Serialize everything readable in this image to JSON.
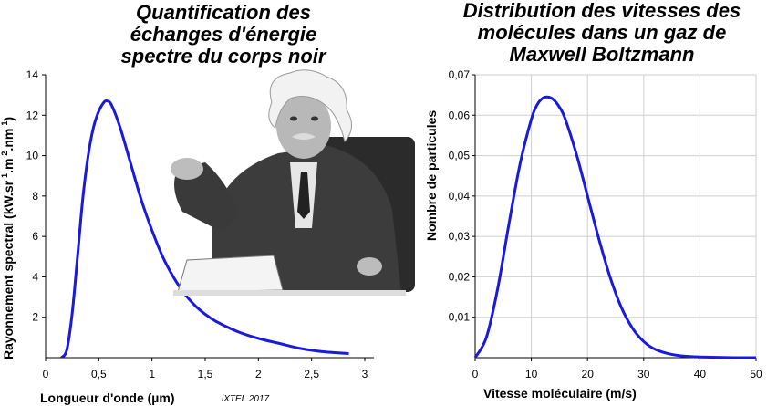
{
  "chart_data": [
    {
      "type": "line",
      "title_lines": [
        "Quantification des",
        "échanges d'énergie",
        "spectre du corps noir"
      ],
      "xlabel": "Longueur d'onde (µm)",
      "ylabel_parts": [
        "Rayonnement spectral (kW.sr",
        "-1",
        ".m",
        "-2",
        ".nm",
        "-1",
        ")"
      ],
      "xlim": [
        0,
        3
      ],
      "ylim": [
        0,
        14
      ],
      "xticks": [
        "0",
        "0,5",
        "1",
        "1,5",
        "2",
        "2,5",
        "3"
      ],
      "xtick_values": [
        0,
        0.5,
        1,
        1.5,
        2,
        2.5,
        3
      ],
      "yticks": [
        "2",
        "4",
        "6",
        "8",
        "10",
        "12",
        "14"
      ],
      "ytick_values": [
        2,
        4,
        6,
        8,
        10,
        12,
        14
      ],
      "grid": false,
      "line_color": "#1a1adc",
      "series": [
        {
          "x": [
            0.15,
            0.2,
            0.25,
            0.3,
            0.35,
            0.4,
            0.45,
            0.5,
            0.55,
            0.58,
            0.62,
            0.7,
            0.8,
            0.9,
            1.0,
            1.1,
            1.2,
            1.3,
            1.4,
            1.5,
            1.6,
            1.8,
            2.0,
            2.2,
            2.4,
            2.6,
            2.85
          ],
          "y": [
            0,
            0.4,
            2.2,
            5.0,
            7.9,
            10.0,
            11.4,
            12.2,
            12.65,
            12.7,
            12.5,
            11.4,
            9.6,
            7.8,
            6.3,
            5.0,
            4.0,
            3.2,
            2.6,
            2.15,
            1.8,
            1.3,
            0.95,
            0.7,
            0.45,
            0.3,
            0.2
          ]
        }
      ],
      "credit": "iXTEL 2017"
    },
    {
      "type": "line",
      "title_lines": [
        "Distribution des vitesses des",
        "molécules dans un gaz de",
        "Maxwell Boltzmann"
      ],
      "xlabel": "Vitesse moléculaire (m/s)",
      "ylabel": "Nombre de particules",
      "xlim": [
        0,
        50
      ],
      "ylim": [
        0,
        0.07
      ],
      "xticks": [
        "0",
        "10",
        "20",
        "30",
        "40",
        "50"
      ],
      "xtick_values": [
        0,
        10,
        20,
        30,
        40,
        50
      ],
      "yticks": [
        "0,01",
        "0,02",
        "0,03",
        "0,04",
        "0,05",
        "0,06",
        "0,07"
      ],
      "ytick_values": [
        0.01,
        0.02,
        0.03,
        0.04,
        0.05,
        0.06,
        0.07
      ],
      "grid": true,
      "line_color": "#1a1adc",
      "series": [
        {
          "x": [
            0,
            2,
            4,
            6,
            8,
            10,
            11,
            12,
            13,
            14,
            15,
            16,
            18,
            20,
            22,
            24,
            26,
            28,
            30,
            32,
            35,
            38,
            42,
            46,
            50
          ],
          "y": [
            0,
            0.005,
            0.017,
            0.033,
            0.048,
            0.059,
            0.0625,
            0.0642,
            0.0645,
            0.0638,
            0.062,
            0.0592,
            0.0505,
            0.04,
            0.0295,
            0.02,
            0.0125,
            0.0073,
            0.004,
            0.0021,
            0.0008,
            0.0003,
            0.0001,
            0,
            0
          ]
        }
      ]
    }
  ],
  "icons": {
    "photo": "einstein-photo"
  }
}
